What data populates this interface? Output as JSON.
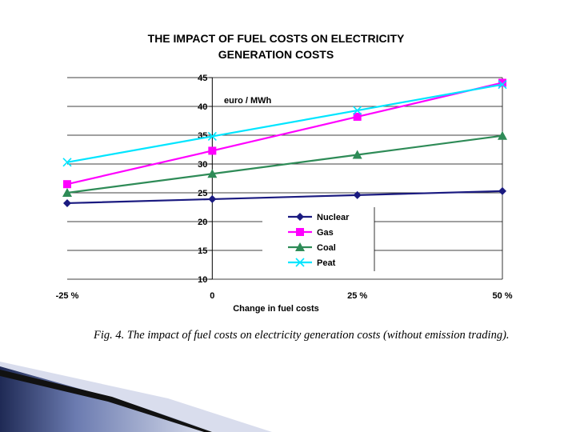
{
  "chart_data": {
    "type": "line",
    "title": "THE IMPACT OF FUEL COSTS ON ELECTRICITY GENERATION COSTS",
    "title_lines": [
      "THE IMPACT OF FUEL COSTS ON ELECTRICITY",
      "GENERATION COSTS"
    ],
    "unit_label": "euro / MWh",
    "xlabel": "Change in fuel costs",
    "ylabel": "",
    "categories": [
      "-25 %",
      "0",
      "25 %",
      "50 %"
    ],
    "ylim": [
      10,
      45
    ],
    "yticks": [
      10,
      15,
      20,
      25,
      30,
      35,
      40,
      45
    ],
    "grid": true,
    "legend_position": "bottom-right",
    "series": [
      {
        "name": "Nuclear",
        "values": [
          23.2,
          23.9,
          24.6,
          25.3
        ],
        "color": "#1a1a80",
        "marker": "diamond"
      },
      {
        "name": "Gas",
        "values": [
          26.5,
          32.3,
          38.2,
          44.1
        ],
        "color": "#ff00ff",
        "marker": "square"
      },
      {
        "name": "Coal",
        "values": [
          25.0,
          28.3,
          31.6,
          34.9
        ],
        "color": "#2e8b57",
        "marker": "triangle"
      },
      {
        "name": "Peat",
        "values": [
          30.3,
          34.8,
          39.3,
          43.8
        ],
        "color": "#00e5ff",
        "marker": "x"
      }
    ]
  },
  "caption": "Fig. 4. The impact of fuel costs on electricity generation costs (without emission trading).",
  "colors": {
    "corner_dark": "#1f2a55",
    "corner_mid": "#6b7bb0",
    "corner_light": "#c9d0e6"
  }
}
